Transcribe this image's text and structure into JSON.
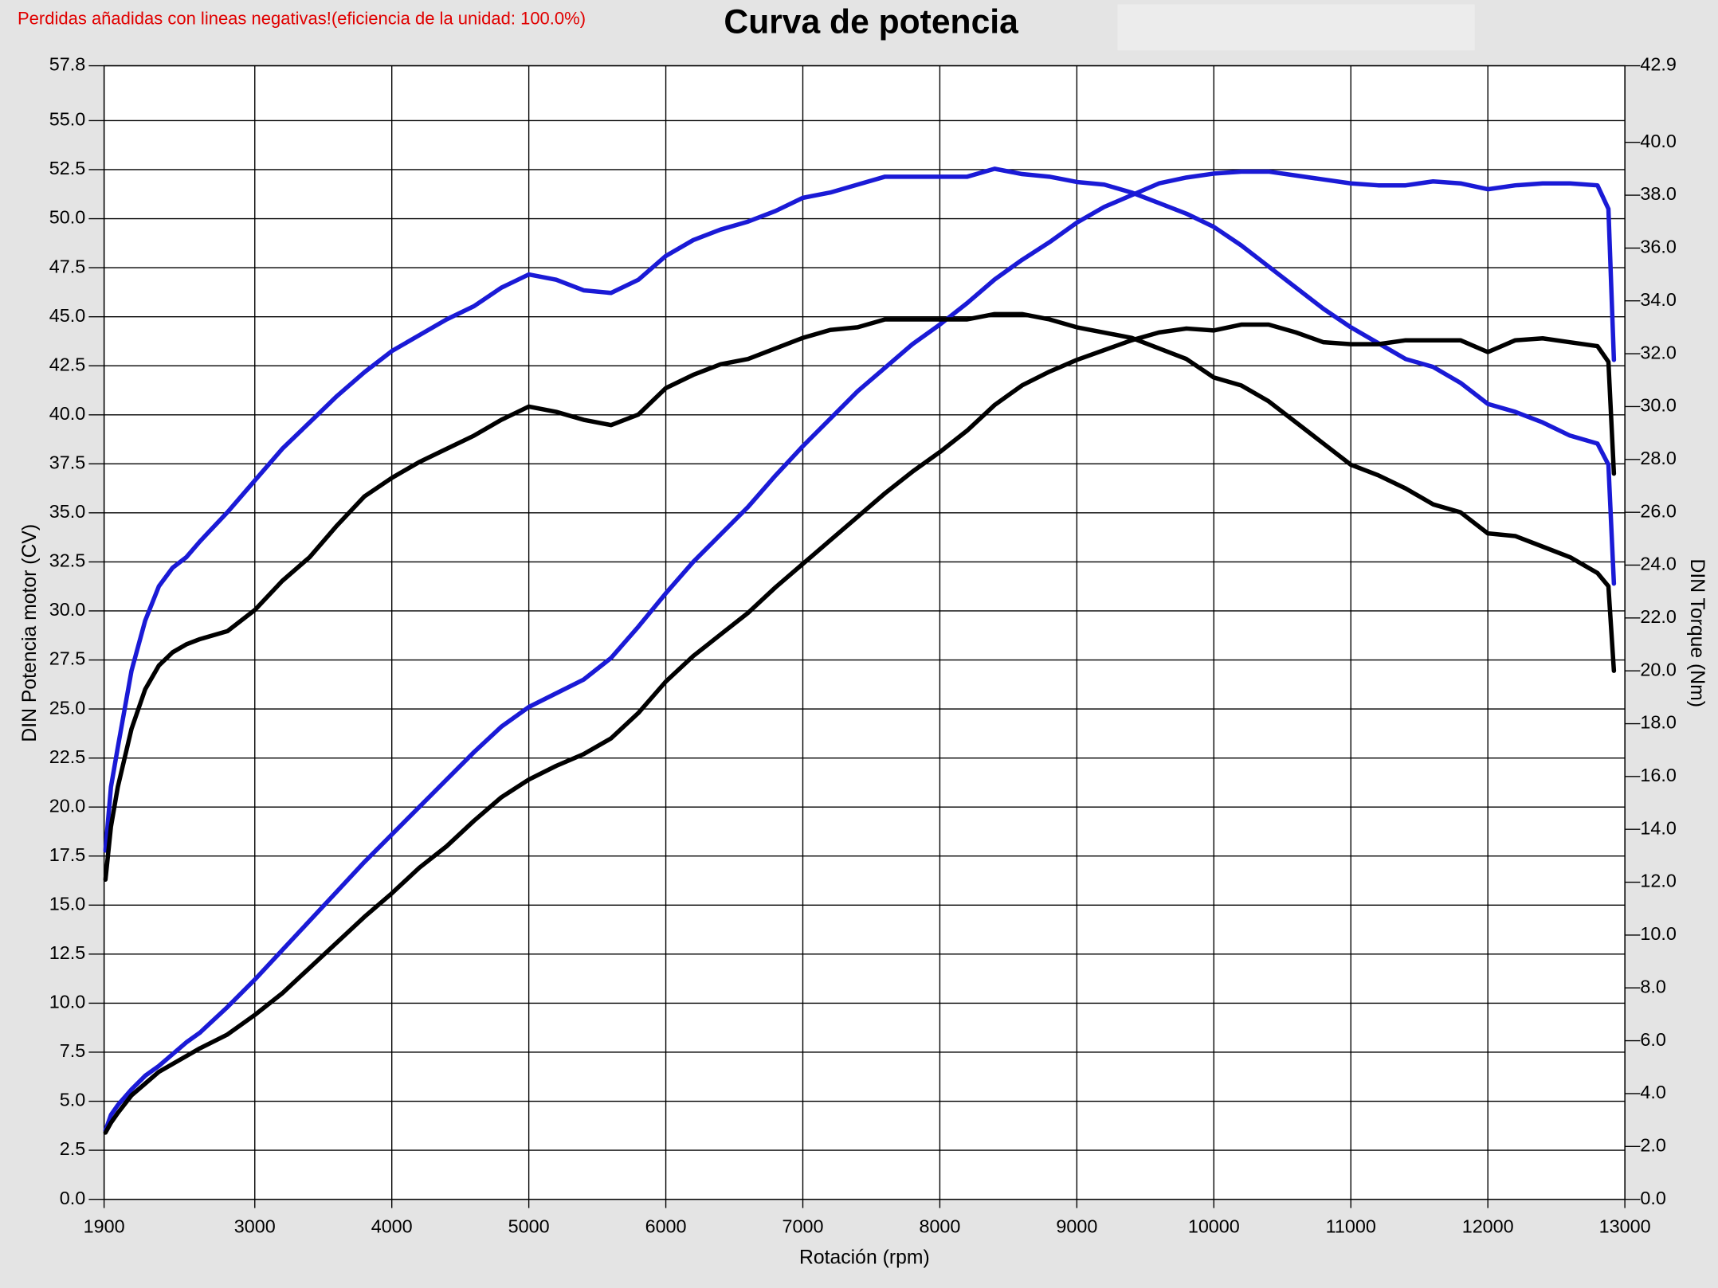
{
  "chart_data": {
    "type": "line",
    "title": "Curva de potencia",
    "annotation": "Perdidas añadidas con lineas negativas!(eficiencia de la unidad: 100.0%)",
    "xlabel": "Rotación (rpm)",
    "ylabel": "DIN Potencia motor (CV)",
    "y2label": "DIN Torque (Nm)",
    "grid": true,
    "x": [
      1910,
      1950,
      2000,
      2100,
      2200,
      2300,
      2400,
      2500,
      2600,
      2800,
      3000,
      3200,
      3400,
      3600,
      3800,
      4000,
      4200,
      4400,
      4600,
      4800,
      5000,
      5200,
      5400,
      5600,
      5800,
      6000,
      6200,
      6400,
      6600,
      6800,
      7000,
      7200,
      7400,
      7600,
      7800,
      8000,
      8200,
      8400,
      8600,
      8800,
      9000,
      9200,
      9400,
      9600,
      9800,
      10000,
      10200,
      10400,
      10600,
      10800,
      11000,
      11200,
      11400,
      11600,
      11800,
      12000,
      12200,
      12400,
      12600,
      12800,
      12880,
      12920
    ],
    "xlim": [
      1900,
      13000
    ],
    "xticks": [
      1900,
      3000,
      4000,
      5000,
      6000,
      7000,
      8000,
      9000,
      10000,
      11000,
      12000,
      13000
    ],
    "ylim": [
      0,
      57.8
    ],
    "yticks": [
      {
        "value": 0,
        "label": "0.0"
      },
      2.5,
      {
        "value": 5,
        "label": "5.0"
      },
      7.5,
      {
        "value": 10,
        "label": "10.0"
      },
      12.5,
      {
        "value": 15,
        "label": "15.0"
      },
      17.5,
      {
        "value": 20,
        "label": "20.0"
      },
      22.5,
      {
        "value": 25,
        "label": "25.0"
      },
      27.5,
      {
        "value": 30,
        "label": "30.0"
      },
      32.5,
      {
        "value": 35,
        "label": "35.0"
      },
      37.5,
      {
        "value": 40,
        "label": "40.0"
      },
      42.5,
      {
        "value": 45,
        "label": "45.0"
      },
      47.5,
      {
        "value": 50,
        "label": "50.0"
      },
      52.5,
      {
        "value": 55,
        "label": "55.0"
      },
      57.8
    ],
    "y2lim": [
      0,
      42.9
    ],
    "y2ticks": [
      {
        "value": 0,
        "label": "0.0"
      },
      {
        "value": 2,
        "label": "2.0"
      },
      {
        "value": 4,
        "label": "4.0"
      },
      {
        "value": 6,
        "label": "6.0"
      },
      {
        "value": 8,
        "label": "8.0"
      },
      {
        "value": 10,
        "label": "10.0"
      },
      {
        "value": 12,
        "label": "12.0"
      },
      {
        "value": 14,
        "label": "14.0"
      },
      {
        "value": 16,
        "label": "16.0"
      },
      {
        "value": 18,
        "label": "18.0"
      },
      {
        "value": 20,
        "label": "20.0"
      },
      {
        "value": 22,
        "label": "22.0"
      },
      {
        "value": 24,
        "label": "24.0"
      },
      {
        "value": 26,
        "label": "26.0"
      },
      {
        "value": 28,
        "label": "28.0"
      },
      {
        "value": 30,
        "label": "30.0"
      },
      {
        "value": 32,
        "label": "32.0"
      },
      {
        "value": 34,
        "label": "34.0"
      },
      {
        "value": 36,
        "label": "36.0"
      },
      {
        "value": 38,
        "label": "38.0"
      },
      {
        "value": 40,
        "label": "40.0"
      },
      42.9
    ],
    "series": [
      {
        "color": "#1a1ad6",
        "axis": "y",
        "values": [
          3.5,
          4.3,
          4.8,
          5.6,
          6.3,
          6.8,
          7.4,
          8.0,
          8.5,
          9.8,
          11.2,
          12.7,
          14.2,
          15.7,
          17.2,
          18.6,
          20.0,
          21.4,
          22.8,
          24.1,
          25.1,
          25.8,
          26.5,
          27.6,
          29.2,
          30.9,
          32.5,
          33.9,
          35.3,
          36.9,
          38.4,
          39.8,
          41.2,
          42.4,
          43.6,
          44.6,
          45.7,
          46.9,
          47.9,
          48.8,
          49.8,
          50.6,
          51.2,
          51.8,
          52.1,
          52.3,
          52.4,
          52.4,
          52.2,
          52.0,
          51.8,
          51.7,
          51.7,
          51.9,
          51.8,
          51.5,
          51.7,
          51.8,
          51.8,
          51.7,
          50.5,
          42.8
        ]
      },
      {
        "color": "#1a1ad6",
        "axis": "y2",
        "values": [
          13.2,
          15.6,
          17.1,
          20.0,
          21.9,
          23.2,
          23.9,
          24.3,
          24.9,
          26.0,
          27.2,
          28.4,
          29.4,
          30.4,
          31.3,
          32.1,
          32.7,
          33.3,
          33.8,
          34.5,
          35.0,
          34.8,
          34.4,
          34.3,
          34.8,
          35.7,
          36.3,
          36.7,
          37.0,
          37.4,
          37.9,
          38.1,
          38.4,
          38.7,
          38.7,
          38.7,
          38.7,
          39.0,
          38.8,
          38.7,
          38.5,
          38.4,
          38.1,
          37.7,
          37.3,
          36.8,
          36.1,
          35.3,
          34.5,
          33.7,
          33.0,
          32.4,
          31.8,
          31.5,
          30.9,
          30.1,
          29.8,
          29.4,
          28.9,
          28.6,
          27.8,
          23.3
        ]
      },
      {
        "color": "#000000",
        "axis": "y",
        "values": [
          3.4,
          3.9,
          4.4,
          5.3,
          5.9,
          6.5,
          6.9,
          7.3,
          7.7,
          8.4,
          9.4,
          10.5,
          11.8,
          13.1,
          14.4,
          15.6,
          16.9,
          18.0,
          19.3,
          20.5,
          21.4,
          22.1,
          22.7,
          23.5,
          24.8,
          26.4,
          27.7,
          28.8,
          29.9,
          31.2,
          32.4,
          33.6,
          34.8,
          36.0,
          37.1,
          38.1,
          39.2,
          40.5,
          41.5,
          42.2,
          42.8,
          43.3,
          43.8,
          44.2,
          44.4,
          44.3,
          44.6,
          44.6,
          44.2,
          43.7,
          43.6,
          43.6,
          43.8,
          43.8,
          43.8,
          43.2,
          43.8,
          43.9,
          43.7,
          43.5,
          42.7,
          37.0
        ]
      },
      {
        "color": "#000000",
        "axis": "y2",
        "values": [
          12.1,
          14.1,
          15.6,
          17.8,
          19.3,
          20.2,
          20.7,
          21.0,
          21.2,
          21.5,
          22.3,
          23.4,
          24.3,
          25.5,
          26.6,
          27.3,
          27.9,
          28.4,
          28.9,
          29.5,
          30.0,
          29.8,
          29.5,
          29.3,
          29.7,
          30.7,
          31.2,
          31.6,
          31.8,
          32.2,
          32.6,
          32.9,
          33.0,
          33.3,
          33.3,
          33.3,
          33.3,
          33.5,
          33.5,
          33.3,
          33.0,
          32.8,
          32.6,
          32.2,
          31.8,
          31.1,
          30.8,
          30.2,
          29.4,
          28.6,
          27.8,
          27.4,
          26.9,
          26.3,
          26.0,
          25.2,
          25.1,
          24.7,
          24.3,
          23.7,
          23.2,
          20.0
        ]
      }
    ]
  }
}
